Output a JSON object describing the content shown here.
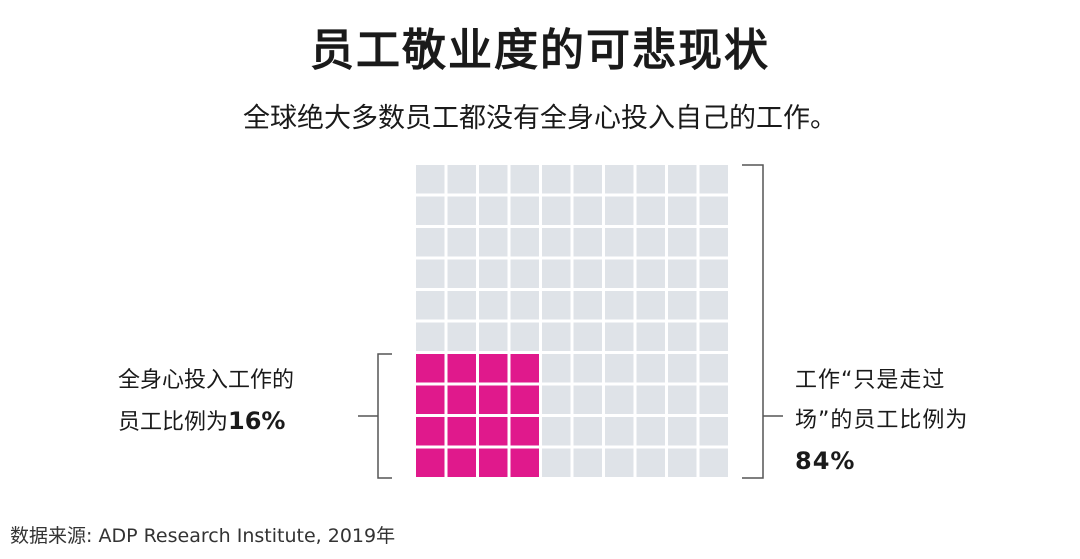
{
  "title": "员工敬业度的可悲现状",
  "subtitle": "全球绝大多数员工都没有全身心投入自己的工作。",
  "left_label": {
    "line1": "全身心投入工作的",
    "line2": "员工比例为",
    "value": "16%"
  },
  "right_label": {
    "line1": "工作“只是走过",
    "line2": "场”的员工比例为",
    "value": "84%"
  },
  "source": "数据来源: ADP Research Institute, 2019年",
  "colors": {
    "engaged": "#e0198c",
    "not_engaged": "#dfe3e8",
    "bracket": "#555555"
  },
  "chart_data": {
    "type": "waffle",
    "grid": {
      "rows": 10,
      "cols": 10
    },
    "series": [
      {
        "name": "全身心投入工作的员工",
        "value": 16
      },
      {
        "name": "工作“只是走过场”的员工",
        "value": 84
      }
    ],
    "engaged_block": {
      "rows": 4,
      "cols": 4,
      "corner": "bottom-left"
    }
  }
}
